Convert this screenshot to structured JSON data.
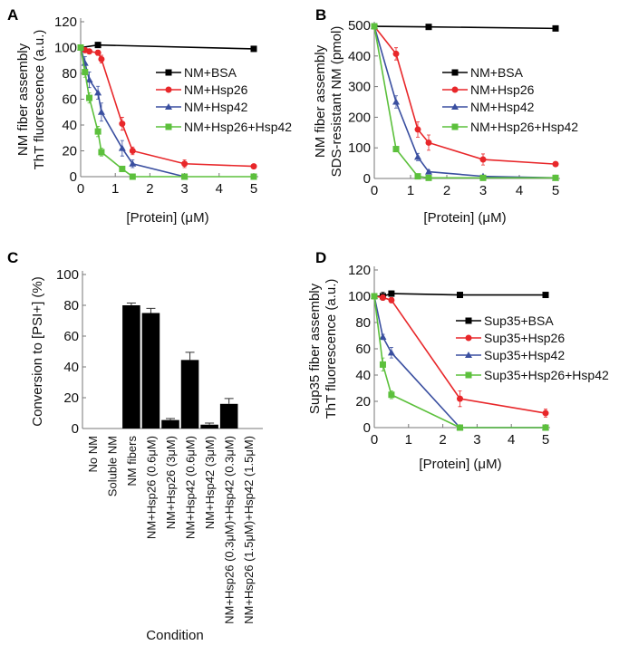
{
  "colors": {
    "bsa": "#000000",
    "hsp26": "#e8272a",
    "hsp42": "#3a4fa0",
    "combo": "#5cc03c",
    "bar": "#000000"
  },
  "chart_data": [
    {
      "panel": "A",
      "type": "line",
      "xlabel": "[Protein] (μM)",
      "ylabel": [
        "NM fiber assembly",
        "ThT fluorescence (a.u.)"
      ],
      "xlim": [
        0,
        5
      ],
      "ylim": [
        0,
        120
      ],
      "xticks": [
        0,
        1,
        2,
        3,
        4,
        5
      ],
      "yticks": [
        0,
        20,
        40,
        60,
        80,
        100,
        120
      ],
      "legend": "right",
      "series": [
        {
          "name": "NM+BSA",
          "color": "bsa",
          "marker": "square",
          "x": [
            0,
            0.5,
            5
          ],
          "y": [
            100,
            102,
            99
          ],
          "err": [
            0,
            2,
            2
          ]
        },
        {
          "name": "NM+Hsp26",
          "color": "hsp26",
          "marker": "circle",
          "x": [
            0,
            0.125,
            0.25,
            0.5,
            0.6,
            1.2,
            1.5,
            3,
            5
          ],
          "y": [
            100,
            98,
            97,
            96,
            91,
            41,
            20,
            10,
            8
          ],
          "err": [
            0,
            1,
            1,
            2,
            3,
            5,
            3,
            3,
            1
          ]
        },
        {
          "name": "NM+Hsp42",
          "color": "hsp42",
          "marker": "triangle",
          "x": [
            0,
            0.125,
            0.25,
            0.5,
            0.6,
            1.2,
            1.5,
            3
          ],
          "y": [
            100,
            88,
            75,
            65,
            50,
            22,
            10,
            0
          ],
          "err": [
            0,
            5,
            6,
            5,
            7,
            6,
            3,
            0
          ]
        },
        {
          "name": "NM+Hsp26+Hsp42",
          "color": "combo",
          "marker": "square",
          "x": [
            0,
            0.125,
            0.25,
            0.5,
            0.6,
            1.2,
            1.5,
            3,
            5
          ],
          "y": [
            100,
            81,
            61,
            35,
            19,
            6,
            0,
            0,
            0
          ],
          "err": [
            0,
            4,
            4,
            4,
            3,
            2,
            0,
            0,
            0
          ]
        }
      ]
    },
    {
      "panel": "B",
      "type": "line",
      "xlabel": "[Protein] (μM)",
      "ylabel": [
        "NM fiber assembly",
        "SDS-resistant NM (pmol)"
      ],
      "xlim": [
        0,
        5
      ],
      "ylim": [
        0,
        500
      ],
      "xticks": [
        0,
        1,
        2,
        3,
        4,
        5
      ],
      "yticks": [
        0,
        100,
        200,
        300,
        400,
        500
      ],
      "legend": "right",
      "series": [
        {
          "name": "NM+BSA",
          "color": "bsa",
          "marker": "square",
          "x": [
            0,
            1.5,
            5
          ],
          "y": [
            497,
            495,
            490
          ],
          "err": [
            0,
            0,
            0
          ]
        },
        {
          "name": "NM+Hsp26",
          "color": "hsp26",
          "marker": "circle",
          "x": [
            0,
            0.6,
            1.2,
            1.5,
            3,
            5
          ],
          "y": [
            497,
            407,
            160,
            117,
            62,
            47
          ],
          "err": [
            0,
            20,
            25,
            25,
            18,
            5
          ]
        },
        {
          "name": "NM+Hsp42",
          "color": "hsp42",
          "marker": "triangle",
          "x": [
            0,
            0.6,
            1.2,
            1.5,
            3,
            5
          ],
          "y": [
            497,
            250,
            70,
            22,
            7,
            2
          ],
          "err": [
            0,
            20,
            12,
            5,
            3,
            0
          ]
        },
        {
          "name": "NM+Hsp26+Hsp42",
          "color": "combo",
          "marker": "square",
          "x": [
            0,
            0.6,
            1.2,
            1.5,
            3,
            5
          ],
          "y": [
            497,
            96,
            7,
            2,
            2,
            2
          ],
          "err": [
            0,
            5,
            3,
            0,
            0,
            0
          ]
        }
      ]
    },
    {
      "panel": "C",
      "type": "bar",
      "xlabel": "Condition",
      "ylabel": "Conversion to [PSI+] (%)",
      "ylim": [
        0,
        100
      ],
      "yticks": [
        0,
        20,
        40,
        60,
        80,
        100
      ],
      "categories": [
        "No NM",
        "Soluble NM",
        "NM fibers",
        "NM+Hsp26 (0.6μM)",
        "NM+Hsp26 (3μM)",
        "NM+Hsp42 (0.6μM)",
        "NM+Hsp42 (3μM)",
        "NM+Hsp26 (0.3μM)+Hsp42 (0.3μM)",
        "NM+Hsp26 (1.5μM)+Hsp42 (1.5μM)"
      ],
      "values": [
        0,
        0,
        80,
        75,
        5.5,
        44.5,
        2.5,
        16,
        0
      ],
      "err": [
        0,
        0,
        1.5,
        3,
        1,
        5,
        1,
        3.5,
        0
      ]
    },
    {
      "panel": "D",
      "type": "line",
      "xlabel": "[Protein] (μM)",
      "ylabel": [
        "Sup35 fiber assembly",
        "ThT fluorescence (a.u.)"
      ],
      "xlim": [
        0,
        5
      ],
      "ylim": [
        0,
        120
      ],
      "xticks": [
        0,
        1,
        2,
        3,
        4,
        5
      ],
      "yticks": [
        0,
        20,
        40,
        60,
        80,
        100,
        120
      ],
      "legend": "right",
      "series": [
        {
          "name": "Sup35+BSA",
          "color": "bsa",
          "marker": "square",
          "x": [
            0,
            0.25,
            0.5,
            2.5,
            5
          ],
          "y": [
            100,
            100,
            102,
            101,
            101
          ],
          "err": [
            0,
            3,
            2,
            1,
            1
          ]
        },
        {
          "name": "Sup35+Hsp26",
          "color": "hsp26",
          "marker": "circle",
          "x": [
            0,
            0.25,
            0.5,
            2.5,
            5
          ],
          "y": [
            100,
            99,
            97,
            22,
            11
          ],
          "err": [
            0,
            2,
            2,
            6,
            3
          ]
        },
        {
          "name": "Sup35+Hsp42",
          "color": "hsp42",
          "marker": "triangle",
          "x": [
            0,
            0.25,
            0.5,
            2.5,
            5
          ],
          "y": [
            100,
            69,
            57,
            0,
            0
          ],
          "err": [
            0,
            2,
            4,
            0,
            0
          ]
        },
        {
          "name": "Sup35+Hsp26+Hsp42",
          "color": "combo",
          "marker": "square",
          "x": [
            0,
            0.25,
            0.5,
            2.5,
            5
          ],
          "y": [
            100,
            48,
            25,
            0,
            0
          ],
          "err": [
            0,
            5,
            3,
            0,
            0
          ]
        }
      ]
    }
  ]
}
